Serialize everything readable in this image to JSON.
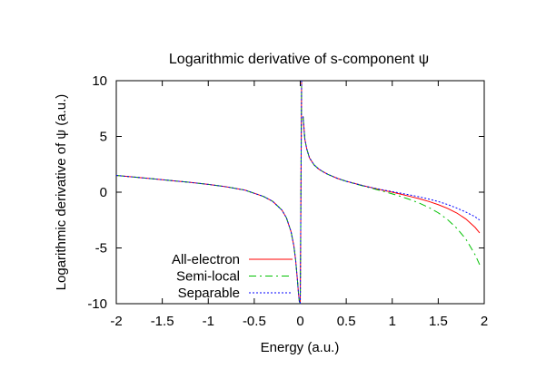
{
  "chart_data": {
    "type": "line",
    "title": "Logarithmic derivative of s-component ψ",
    "xlabel": "Energy (a.u.)",
    "ylabel": "Logarithmic derivative of ψ (a.u.)",
    "xlim": [
      -2,
      2
    ],
    "ylim": [
      -10,
      10
    ],
    "xticks": [
      -2,
      -1.5,
      -1,
      -0.5,
      0,
      0.5,
      1,
      1.5,
      2
    ],
    "xtick_labels": [
      "-2",
      "-1.5",
      "-1",
      "-0.5",
      "0",
      "0.5",
      "1",
      "1.5",
      "2"
    ],
    "yticks": [
      -10,
      -5,
      0,
      5,
      10
    ],
    "ytick_labels": [
      "-10",
      "-5",
      "0",
      "5",
      "10"
    ],
    "grid": false,
    "legend_position": "bottom-left",
    "asymptote_x": 0.02,
    "series": [
      {
        "name": "All-electron",
        "color": "#ff0000",
        "dash": "solid",
        "x": [
          -2.0,
          -1.8,
          -1.6,
          -1.4,
          -1.2,
          -1.0,
          -0.8,
          -0.6,
          -0.4,
          -0.3,
          -0.2,
          -0.15,
          -0.1,
          -0.07,
          -0.05,
          -0.03,
          -0.02,
          -0.01,
          0.0,
          0.0146,
          0.03,
          0.05,
          0.07,
          0.1,
          0.15,
          0.2,
          0.25,
          0.3,
          0.4,
          0.5,
          0.6,
          0.7,
          0.8,
          0.9,
          1.0,
          1.1,
          1.2,
          1.3,
          1.4,
          1.5,
          1.6,
          1.7,
          1.8,
          1.9,
          1.95
        ],
        "y": [
          1.5,
          1.35,
          1.2,
          1.04,
          0.88,
          0.7,
          0.48,
          0.18,
          -0.38,
          -0.82,
          -1.6,
          -2.3,
          -3.55,
          -4.8,
          -6.1,
          -7.95,
          -9.0,
          -9.8,
          -10.0,
          10.0,
          6.8,
          4.75,
          3.9,
          3.08,
          2.45,
          2.08,
          1.82,
          1.6,
          1.25,
          0.98,
          0.76,
          0.55,
          0.36,
          0.17,
          0.0,
          -0.19,
          -0.39,
          -0.6,
          -0.84,
          -1.12,
          -1.45,
          -1.86,
          -2.4,
          -3.15,
          -3.65
        ]
      },
      {
        "name": "Semi-local",
        "color": "#00c000",
        "dash": "8,4,2,4",
        "x": [
          -2.0,
          -1.8,
          -1.6,
          -1.4,
          -1.2,
          -1.0,
          -0.8,
          -0.6,
          -0.4,
          -0.3,
          -0.2,
          -0.15,
          -0.1,
          -0.07,
          -0.05,
          -0.03,
          -0.02,
          -0.01,
          0.0,
          0.0146,
          0.03,
          0.05,
          0.07,
          0.1,
          0.15,
          0.2,
          0.25,
          0.3,
          0.4,
          0.5,
          0.6,
          0.7,
          0.8,
          0.9,
          1.0,
          1.1,
          1.2,
          1.3,
          1.4,
          1.5,
          1.6,
          1.7,
          1.8,
          1.9,
          1.95
        ],
        "y": [
          1.5,
          1.35,
          1.2,
          1.04,
          0.88,
          0.7,
          0.48,
          0.18,
          -0.38,
          -0.82,
          -1.6,
          -2.3,
          -3.55,
          -4.8,
          -6.1,
          -7.95,
          -9.0,
          -9.8,
          -10.0,
          10.0,
          6.8,
          4.75,
          3.9,
          3.08,
          2.45,
          2.08,
          1.82,
          1.6,
          1.25,
          0.97,
          0.74,
          0.52,
          0.3,
          0.08,
          -0.15,
          -0.4,
          -0.68,
          -1.0,
          -1.38,
          -1.85,
          -2.45,
          -3.22,
          -4.2,
          -5.6,
          -6.5
        ]
      },
      {
        "name": "Separable",
        "color": "#0000ff",
        "dash": "2,2",
        "x": [
          -2.0,
          -1.8,
          -1.6,
          -1.4,
          -1.2,
          -1.0,
          -0.8,
          -0.6,
          -0.4,
          -0.3,
          -0.2,
          -0.15,
          -0.1,
          -0.07,
          -0.05,
          -0.03,
          -0.02,
          -0.01,
          0.0,
          0.0146,
          0.03,
          0.05,
          0.07,
          0.1,
          0.15,
          0.2,
          0.25,
          0.3,
          0.4,
          0.5,
          0.6,
          0.7,
          0.8,
          0.9,
          1.0,
          1.1,
          1.2,
          1.3,
          1.4,
          1.5,
          1.6,
          1.7,
          1.8,
          1.9,
          1.95
        ],
        "y": [
          1.5,
          1.35,
          1.2,
          1.04,
          0.88,
          0.7,
          0.48,
          0.18,
          -0.38,
          -0.82,
          -1.6,
          -2.3,
          -3.55,
          -4.8,
          -6.1,
          -7.95,
          -9.0,
          -9.8,
          -10.0,
          10.0,
          6.8,
          4.75,
          3.9,
          3.08,
          2.45,
          2.08,
          1.82,
          1.6,
          1.25,
          0.98,
          0.76,
          0.55,
          0.37,
          0.2,
          0.05,
          -0.1,
          -0.26,
          -0.43,
          -0.62,
          -0.84,
          -1.1,
          -1.42,
          -1.78,
          -2.2,
          -2.5
        ]
      }
    ]
  }
}
